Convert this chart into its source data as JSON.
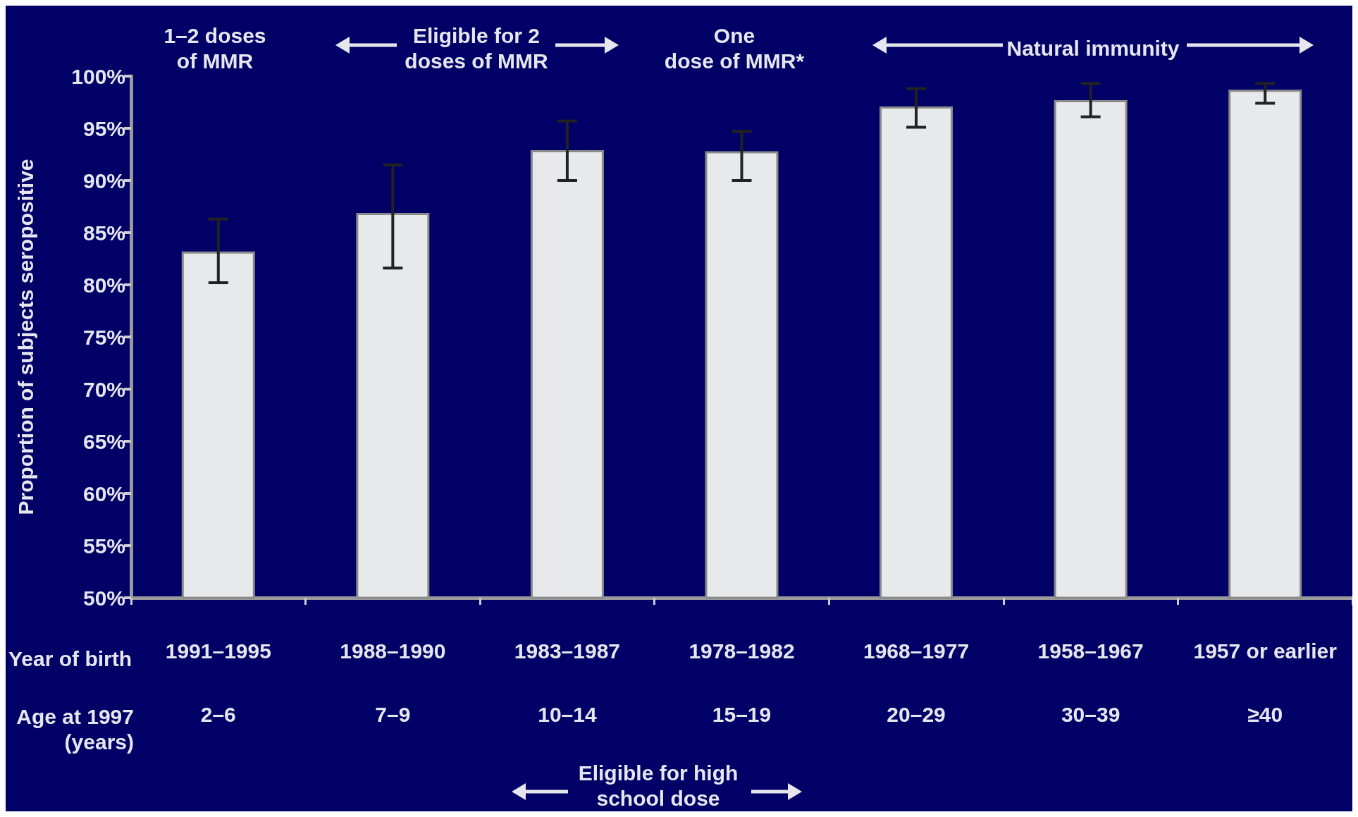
{
  "chart_data": {
    "type": "bar",
    "ylabel": "Proportion of subjects seropositive",
    "categories": [
      "1991–1995\n2–6",
      "1988–1990\n7–9",
      "1983–1987\n10–14",
      "1978–1982\n15–19",
      "1968–1977\n20–29",
      "1958–1967\n30–39",
      "1957 or earlier\n≥40"
    ],
    "values": [
      83.2,
      86.9,
      92.9,
      92.8,
      97.1,
      97.7,
      98.7
    ],
    "errors": [
      [
        80.2,
        86.3
      ],
      [
        81.6,
        91.5
      ],
      [
        90.0,
        95.7
      ],
      [
        90.0,
        94.7
      ],
      [
        95.1,
        98.8
      ],
      [
        96.1,
        99.3
      ],
      [
        97.4,
        99.3
      ]
    ],
    "color": "#e8e9ea",
    "ylim": [
      50,
      100
    ],
    "yticks": [
      {
        "value": 50,
        "label": "50%"
      },
      {
        "value": 55,
        "label": "55%"
      },
      {
        "value": 60,
        "label": "60%"
      },
      {
        "value": 65,
        "label": "65%"
      },
      {
        "value": 70,
        "label": "70%"
      },
      {
        "value": 75,
        "label": "75%"
      },
      {
        "value": 80,
        "label": "80%"
      },
      {
        "value": 85,
        "label": "85%"
      },
      {
        "value": 90,
        "label": "90%"
      },
      {
        "value": 95,
        "label": "95%"
      },
      {
        "value": 100,
        "label": "100%"
      }
    ],
    "annotations": [
      "1–2 doses\nof MMR",
      "Eligible for 2\ndoses of MMR",
      "One\ndose of MMR*",
      "Natural immunity",
      "Year of birth",
      "Age at 1997\n(years)",
      "Eligible for high\nschool dose"
    ],
    "grid": false
  }
}
